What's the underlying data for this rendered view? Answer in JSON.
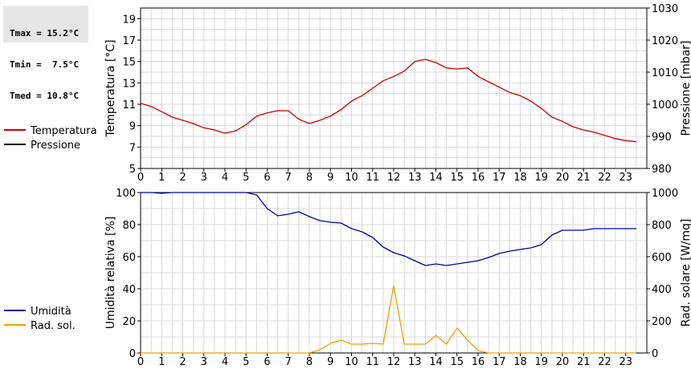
{
  "stats": {
    "tmax": "Tmax = 15.2°C",
    "tmin": "Tmin =  7.5°C",
    "tmed": "Tmed = 10.8°C"
  },
  "colors": {
    "temperature": "#cc0000",
    "pressure": "#000000",
    "humidity": "#0000b4",
    "radiation": "#f0a000",
    "grid": "#d8d8d8"
  },
  "chart_data": [
    {
      "type": "line",
      "ylabel": "Temperatura [°C]",
      "y2label": "Pressione [mbar]",
      "xlim": [
        0,
        24
      ],
      "ylim": [
        5,
        20
      ],
      "y2lim": [
        980,
        1030
      ],
      "xticks": [
        0,
        1,
        2,
        3,
        4,
        5,
        6,
        7,
        8,
        9,
        10,
        11,
        12,
        13,
        14,
        15,
        16,
        17,
        18,
        19,
        20,
        21,
        22,
        23
      ],
      "yticks": [
        5,
        7,
        9,
        11,
        13,
        15,
        17,
        19
      ],
      "y2ticks": [
        980,
        990,
        1000,
        1010,
        1020,
        1030
      ],
      "grid": true,
      "legend": [
        "Temperatura",
        "Pressione"
      ],
      "series": [
        {
          "name": "Temperatura",
          "axis": "left",
          "color": "#cc0000",
          "x": [
            0,
            0.5,
            1,
            1.5,
            2,
            2.5,
            3,
            3.5,
            4,
            4.5,
            5,
            5.5,
            6,
            6.5,
            7,
            7.5,
            8,
            8.5,
            9,
            9.5,
            10,
            10.5,
            11,
            11.5,
            12,
            12.5,
            13,
            13.5,
            14,
            14.5,
            15,
            15.5,
            16,
            16.5,
            17,
            17.5,
            18,
            18.5,
            19,
            19.5,
            20,
            20.5,
            21,
            21.5,
            22,
            22.5,
            23,
            23.5
          ],
          "values": [
            11.1,
            10.8,
            10.3,
            9.8,
            9.5,
            9.2,
            8.8,
            8.6,
            8.3,
            8.5,
            9.1,
            9.9,
            10.2,
            10.4,
            10.4,
            9.6,
            9.2,
            9.5,
            9.9,
            10.5,
            11.3,
            11.8,
            12.5,
            13.2,
            13.6,
            14.1,
            15.0,
            15.2,
            14.9,
            14.4,
            14.3,
            14.4,
            13.6,
            13.1,
            12.6,
            12.1,
            11.8,
            11.3,
            10.6,
            9.8,
            9.4,
            8.9,
            8.6,
            8.4,
            8.1,
            7.8,
            7.6,
            7.5
          ]
        },
        {
          "name": "Pressione",
          "axis": "right",
          "color": "#000000",
          "x": [],
          "values": []
        }
      ]
    },
    {
      "type": "line",
      "ylabel": "Umidità relativa [%]",
      "y2label": "Rad. solare [W/mq]",
      "xlim": [
        0,
        24
      ],
      "ylim": [
        0,
        100
      ],
      "y2lim": [
        0,
        1000
      ],
      "xticks": [
        0,
        1,
        2,
        3,
        4,
        5,
        6,
        7,
        8,
        9,
        10,
        11,
        12,
        13,
        14,
        15,
        16,
        17,
        18,
        19,
        20,
        21,
        22,
        23
      ],
      "yticks": [
        0,
        20,
        40,
        60,
        80,
        100
      ],
      "y2ticks": [
        0,
        200,
        400,
        600,
        800,
        1000
      ],
      "grid": true,
      "legend": [
        "Umidità",
        "Rad. sol."
      ],
      "series": [
        {
          "name": "Umidità",
          "axis": "left",
          "color": "#0000b4",
          "x": [
            0,
            0.5,
            1,
            1.5,
            2,
            2.5,
            3,
            3.5,
            4,
            4.5,
            5,
            5.5,
            6,
            6.5,
            7,
            7.5,
            8,
            8.5,
            9,
            9.5,
            10,
            10.5,
            11,
            11.5,
            12,
            12.5,
            13,
            13.5,
            14,
            14.5,
            15,
            15.5,
            16,
            16.5,
            17,
            17.5,
            18,
            18.5,
            19,
            19.5,
            20,
            20.5,
            21,
            21.5,
            22,
            22.5,
            23,
            23.5
          ],
          "values": [
            100,
            100,
            99.5,
            100,
            100,
            100,
            100,
            100,
            100,
            100,
            100,
            98.5,
            90,
            85.5,
            86.5,
            88,
            85,
            82.5,
            81.5,
            81,
            77.5,
            75.5,
            72,
            66,
            62.5,
            60.5,
            57.5,
            54.5,
            55.5,
            54.5,
            55.5,
            56.5,
            57.5,
            59.5,
            62,
            63.5,
            64.5,
            65.5,
            67.5,
            73.5,
            76.5,
            76.5,
            76.5,
            77.5,
            77.5,
            77.5,
            77.5,
            77.5
          ]
        },
        {
          "name": "Rad. sol.",
          "axis": "right",
          "color": "#f0a000",
          "x": [
            0,
            1,
            2,
            3,
            4,
            5,
            6,
            7,
            8,
            8.5,
            9,
            9.5,
            10,
            10.5,
            11,
            11.5,
            12,
            12.5,
            13,
            13.5,
            14,
            14.5,
            15,
            15.5,
            16,
            16.5,
            17,
            18,
            19,
            20,
            21,
            22,
            23,
            23.5
          ],
          "values": [
            0,
            0,
            0,
            0,
            0,
            0,
            0,
            0,
            0,
            20,
            60,
            80,
            55,
            55,
            60,
            55,
            420,
            55,
            55,
            55,
            110,
            55,
            155,
            80,
            15,
            0,
            0,
            0,
            0,
            0,
            0,
            0,
            0,
            0
          ]
        }
      ]
    }
  ]
}
